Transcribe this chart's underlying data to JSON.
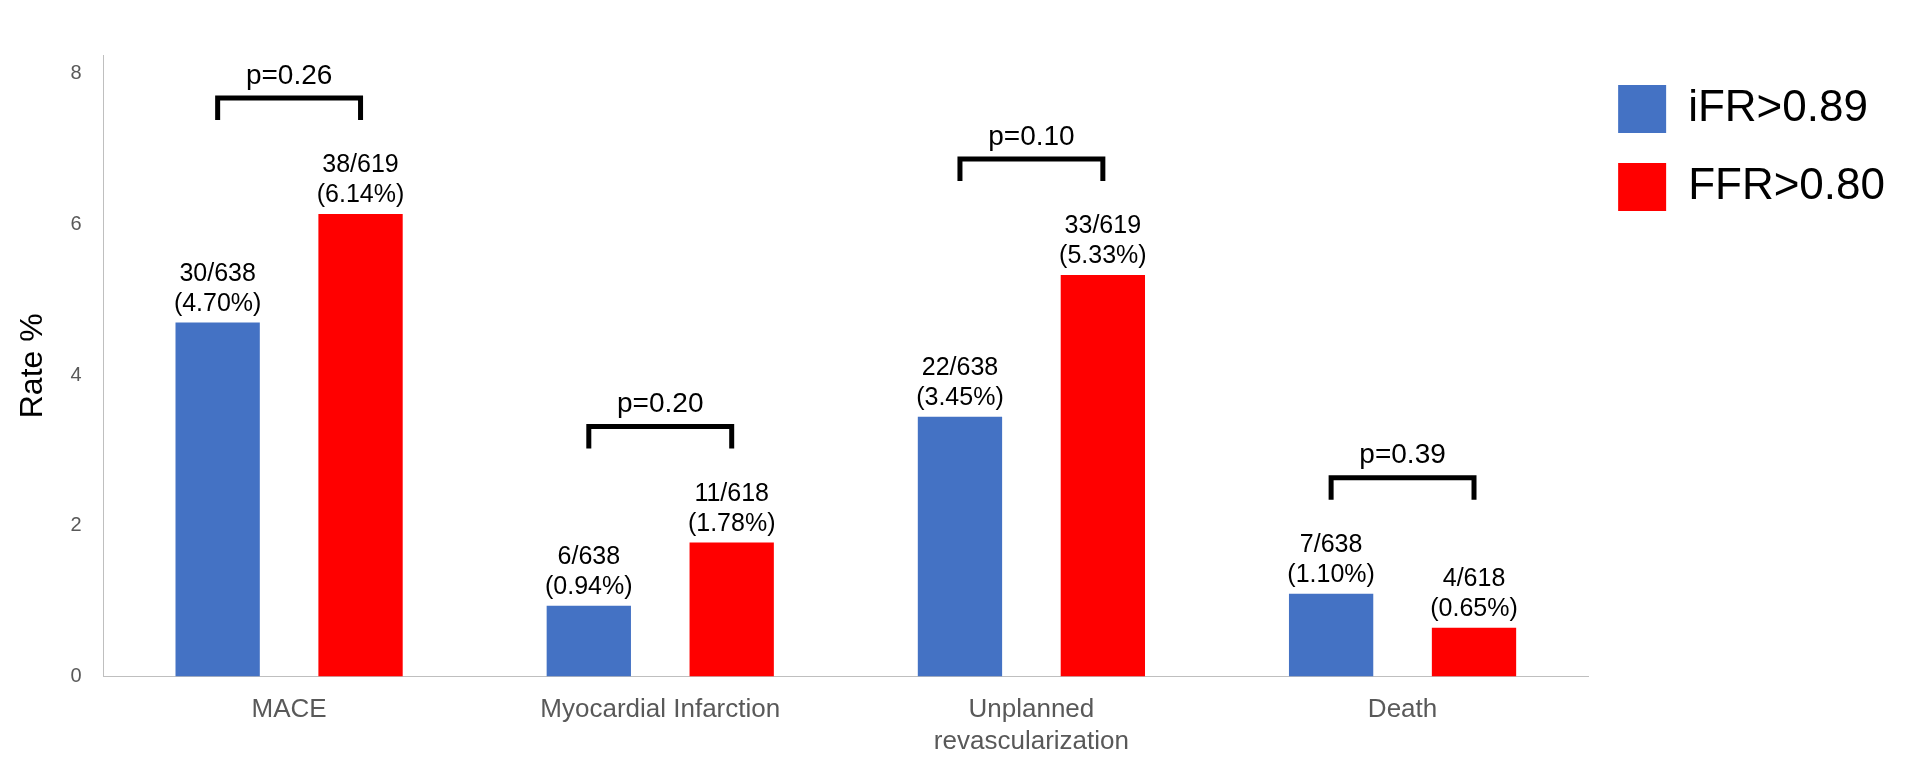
{
  "chart_data": {
    "type": "bar",
    "ylabel": "Rate %",
    "categories": [
      "MACE",
      "Myocardial Infarction",
      "Unplanned\nrevascularization",
      "Death"
    ],
    "series": [
      {
        "name": "iFR>0.89",
        "color": "#4472c4",
        "values": [
          4.7,
          0.94,
          3.45,
          1.1
        ],
        "value_labels": [
          "30/638\n(4.70%)",
          "6/638\n(0.94%)",
          "22/638\n(3.45%)",
          "7/638\n(1.10%)"
        ]
      },
      {
        "name": "FFR>0.80",
        "color": "#ff0000",
        "values": [
          6.14,
          1.78,
          5.33,
          0.65
        ],
        "value_labels": [
          "38/619\n(6.14%)",
          "11/618\n(1.78%)",
          "33/619\n(5.33%)",
          "4/618\n(0.65%)"
        ]
      }
    ],
    "ylim": [
      0,
      8.25
    ],
    "yticks": [
      0,
      2,
      4,
      6,
      8
    ],
    "grid": false,
    "legend": "top right",
    "annotations": [
      "p=0.26",
      "p=0.20",
      "p=0.10",
      "p=0.39"
    ]
  }
}
